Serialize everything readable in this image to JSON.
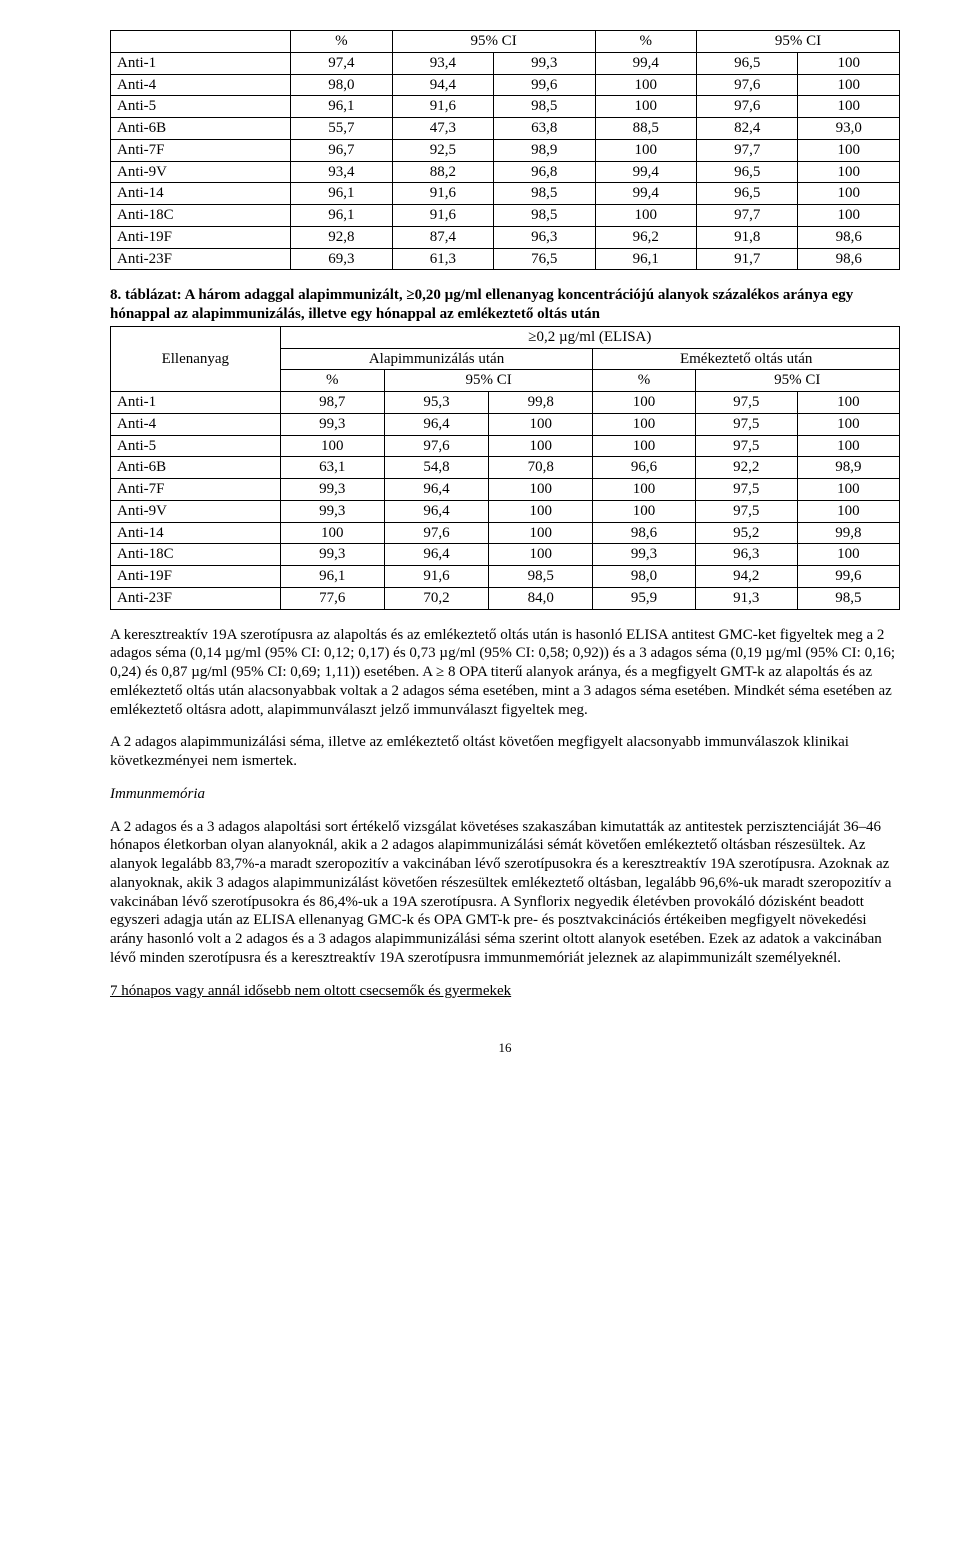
{
  "table1": {
    "headers": {
      "pct1": "%",
      "ci1": "95% CI",
      "pct2": "%",
      "ci2": "95% CI"
    },
    "rows": [
      {
        "a": "Anti-1",
        "c1": "97,4",
        "c2": "93,4",
        "c3": "99,3",
        "c4": "99,4",
        "c5": "96,5",
        "c6": "100"
      },
      {
        "a": "Anti-4",
        "c1": "98,0",
        "c2": "94,4",
        "c3": "99,6",
        "c4": "100",
        "c5": "97,6",
        "c6": "100"
      },
      {
        "a": "Anti-5",
        "c1": "96,1",
        "c2": "91,6",
        "c3": "98,5",
        "c4": "100",
        "c5": "97,6",
        "c6": "100"
      },
      {
        "a": "Anti-6B",
        "c1": "55,7",
        "c2": "47,3",
        "c3": "63,8",
        "c4": "88,5",
        "c5": "82,4",
        "c6": "93,0"
      },
      {
        "a": "Anti-7F",
        "c1": "96,7",
        "c2": "92,5",
        "c3": "98,9",
        "c4": "100",
        "c5": "97,7",
        "c6": "100"
      },
      {
        "a": "Anti-9V",
        "c1": "93,4",
        "c2": "88,2",
        "c3": "96,8",
        "c4": "99,4",
        "c5": "96,5",
        "c6": "100"
      },
      {
        "a": "Anti-14",
        "c1": "96,1",
        "c2": "91,6",
        "c3": "98,5",
        "c4": "99,4",
        "c5": "96,5",
        "c6": "100"
      },
      {
        "a": "Anti-18C",
        "c1": "96,1",
        "c2": "91,6",
        "c3": "98,5",
        "c4": "100",
        "c5": "97,7",
        "c6": "100"
      },
      {
        "a": "Anti-19F",
        "c1": "92,8",
        "c2": "87,4",
        "c3": "96,3",
        "c4": "96,2",
        "c5": "91,8",
        "c6": "98,6"
      },
      {
        "a": "Anti-23F",
        "c1": "69,3",
        "c2": "61,3",
        "c3": "76,5",
        "c4": "96,1",
        "c5": "91,7",
        "c6": "98,6"
      }
    ]
  },
  "table2_caption": "8. táblázat: A három adaggal alapimmunizált, ≥0,20 µg/ml ellenanyag koncentrációjú alanyok százalékos aránya egy hónappal az alapimmunizálás, illetve egy hónappal az emlékeztető oltás után",
  "table2": {
    "top": {
      "ellen": "Ellenanyag",
      "elisa": "≥0,2 µg/ml (ELISA)",
      "alap": "Alapimmunizálás után",
      "emek": "Emékeztető oltás után",
      "pct1": "%",
      "ci1": "95% CI",
      "pct2": "%",
      "ci2": "95% CI"
    },
    "rows": [
      {
        "a": "Anti-1",
        "c1": "98,7",
        "c2": "95,3",
        "c3": "99,8",
        "c4": "100",
        "c5": "97,5",
        "c6": "100"
      },
      {
        "a": "Anti-4",
        "c1": "99,3",
        "c2": "96,4",
        "c3": "100",
        "c4": "100",
        "c5": "97,5",
        "c6": "100"
      },
      {
        "a": "Anti-5",
        "c1": "100",
        "c2": "97,6",
        "c3": "100",
        "c4": "100",
        "c5": "97,5",
        "c6": "100"
      },
      {
        "a": "Anti-6B",
        "c1": "63,1",
        "c2": "54,8",
        "c3": "70,8",
        "c4": "96,6",
        "c5": "92,2",
        "c6": "98,9"
      },
      {
        "a": "Anti-7F",
        "c1": "99,3",
        "c2": "96,4",
        "c3": "100",
        "c4": "100",
        "c5": "97,5",
        "c6": "100"
      },
      {
        "a": "Anti-9V",
        "c1": "99,3",
        "c2": "96,4",
        "c3": "100",
        "c4": "100",
        "c5": "97,5",
        "c6": "100"
      },
      {
        "a": "Anti-14",
        "c1": "100",
        "c2": "97,6",
        "c3": "100",
        "c4": "98,6",
        "c5": "95,2",
        "c6": "99,8"
      },
      {
        "a": "Anti-18C",
        "c1": "99,3",
        "c2": "96,4",
        "c3": "100",
        "c4": "99,3",
        "c5": "96,3",
        "c6": "100"
      },
      {
        "a": "Anti-19F",
        "c1": "96,1",
        "c2": "91,6",
        "c3": "98,5",
        "c4": "98,0",
        "c5": "94,2",
        "c6": "99,6"
      },
      {
        "a": "Anti-23F",
        "c1": "77,6",
        "c2": "70,2",
        "c3": "84,0",
        "c4": "95,9",
        "c5": "91,3",
        "c6": "98,5"
      }
    ]
  },
  "para1": "A keresztreaktív 19A szerotípusra az alapoltás és az emlékeztető oltás után is hasonló ELISA antitest GMC-ket figyeltek meg a 2 adagos séma (0,14 µg/ml (95% CI: 0,12; 0,17) és 0,73 µg/ml (95% CI: 0,58; 0,92)) és a 3 adagos séma (0,19 µg/ml (95% CI: 0,16; 0,24) és 0,87 µg/ml (95% CI: 0,69; 1,11)) esetében. A ≥ 8 OPA titerű alanyok aránya, és a megfigyelt GMT-k az alapoltás és az emlékeztető oltás után alacsonyabbak voltak a 2 adagos séma esetében, mint a 3 adagos séma esetében. Mindkét séma esetében az emlékeztető oltásra adott, alapimmunválaszt jelző immunválaszt figyeltek meg.",
  "para2": "A 2 adagos alapimmunizálási séma, illetve az emlékeztető oltást követően megfigyelt alacsonyabb immunválaszok klinikai következményei nem ismertek.",
  "heading_immun": "Immunmemória",
  "para3": "A 2 adagos és a 3 adagos alapoltási sort értékelő vizsgálat követéses szakaszában kimutatták az antitestek perzisztenciáját 36–46 hónapos életkorban olyan alanyoknál, akik a 2 adagos alapimmunizálási sémát követően emlékeztető oltásban részesültek. Az alanyok legalább 83,7%-a maradt szeropozitív a vakcinában lévő szerotípusokra és a keresztreaktív 19A szerotípusra. Azoknak az alanyoknak, akik 3 adagos alapimmunizálást követően részesültek emlékeztető oltásban, legalább 96,6%-uk maradt szeropozitív a vakcinában lévő szerotípusokra és 86,4%-uk a 19A szerotípusra. A Synflorix negyedik életévben provokáló dózisként beadott egyszeri adagja után az ELISA ellenanyag GMC-k és OPA GMT-k pre- és posztvakcinációs értékeiben megfigyelt növekedési arány hasonló volt a 2 adagos és a 3 adagos alapimmunizálási séma szerint oltott alanyok esetében. Ezek az adatok a vakcinában lévő minden szerotípusra és a keresztreaktív 19A szerotípusra immunmemóriát jeleznek az alapimmunizált személyeknél.",
  "heading7": "7 hónapos vagy annál idősebb nem oltott csecsemők és gyermekek",
  "page_number": "16"
}
